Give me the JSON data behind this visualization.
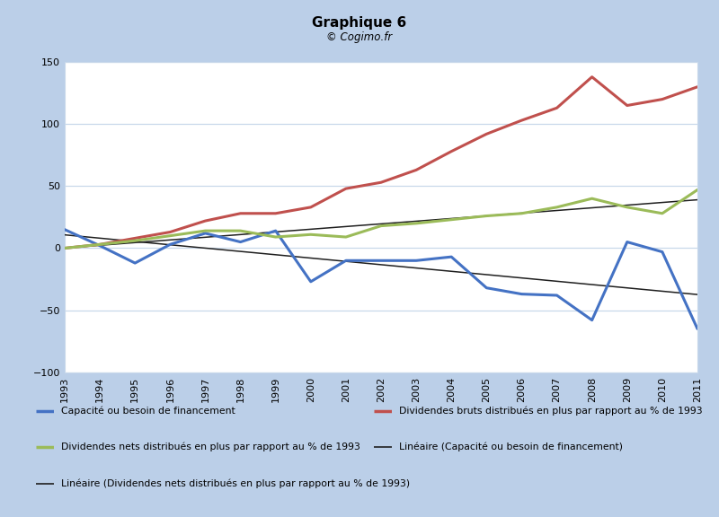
{
  "title": "Graphique 6",
  "subtitle": "© Cogimo.fr",
  "years": [
    1993,
    1994,
    1995,
    1996,
    1997,
    1998,
    1999,
    2000,
    2001,
    2002,
    2003,
    2004,
    2005,
    2006,
    2007,
    2008,
    2009,
    2010,
    2011
  ],
  "blue_series": [
    15,
    2,
    -12,
    3,
    12,
    5,
    14,
    -27,
    -10,
    -10,
    -10,
    -7,
    -32,
    -37,
    -38,
    -58,
    5,
    -3,
    -65
  ],
  "red_series": [
    0,
    3,
    8,
    13,
    22,
    28,
    28,
    33,
    48,
    53,
    63,
    78,
    92,
    103,
    113,
    138,
    115,
    120,
    130
  ],
  "green_series": [
    0,
    3,
    6,
    10,
    14,
    14,
    9,
    11,
    9,
    18,
    20,
    23,
    26,
    28,
    33,
    40,
    33,
    28,
    47
  ],
  "blue_color": "#4472C4",
  "red_color": "#C0504D",
  "green_color": "#9BBB59",
  "black_color": "#1F1F1F",
  "bg_outer": "#BBCFE8",
  "bg_inner": "#FFFFFF",
  "grid_color": "#C8D8EA",
  "ylim": [
    -100,
    150
  ],
  "yticks": [
    -100,
    -50,
    0,
    50,
    100,
    150
  ],
  "legend_blue": "Capacité ou besoin de financement",
  "legend_red": "Dividendes bruts distribués en plus par rapport au % de 1993",
  "legend_green": "Dividendes nets distribués en plus par rapport au % de 1993",
  "legend_lin_blue": "Linéaire (Capacité ou besoin de financement)",
  "legend_lin_green": "Linéaire (Dividendes nets distribués en plus par rapport au % de 1993)"
}
